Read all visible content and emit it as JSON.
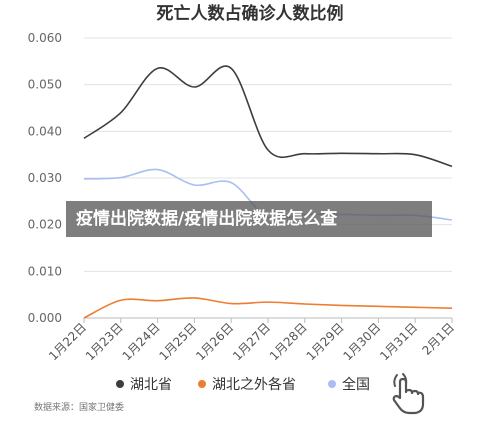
{
  "chart_data": {
    "type": "line",
    "title": "死亡人数占确诊人数比例",
    "xlabel": "",
    "ylabel": "",
    "categories": [
      "1月22日",
      "1月23日",
      "1月24日",
      "1月25日",
      "1月26日",
      "1月27日",
      "1月28日",
      "1月29日",
      "1月30日",
      "1月31日",
      "2月1日"
    ],
    "ylim": [
      0,
      0.06
    ],
    "yticks": [
      "0.000",
      "0.010",
      "0.020",
      "0.030",
      "0.040",
      "0.050",
      "0.060"
    ],
    "grid": true,
    "legend_position": "bottom",
    "series": [
      {
        "name": "湖北省",
        "color": "#3d3d3d",
        "values": [
          0.0385,
          0.044,
          0.0535,
          0.0495,
          0.0535,
          0.036,
          0.0352,
          0.0353,
          0.0352,
          0.035,
          0.0325
        ]
      },
      {
        "name": "湖北之外各省",
        "color": "#ed7d31",
        "values": [
          0.0,
          0.0038,
          0.0037,
          0.0043,
          0.0031,
          0.0034,
          0.003,
          0.0027,
          0.0025,
          0.0023,
          0.0021
        ]
      },
      {
        "name": "全国",
        "color": "#a9bfef",
        "values": [
          0.0298,
          0.0301,
          0.0318,
          0.0285,
          0.029,
          0.0215,
          0.0222,
          0.0222,
          0.022,
          0.022,
          0.021
        ]
      }
    ]
  },
  "source_text": "数据来源：国家卫健委",
  "overlay_text": "疫情出院数据/疫情出院数据怎么查",
  "icons": {
    "hand": "pointing-hand-icon"
  }
}
